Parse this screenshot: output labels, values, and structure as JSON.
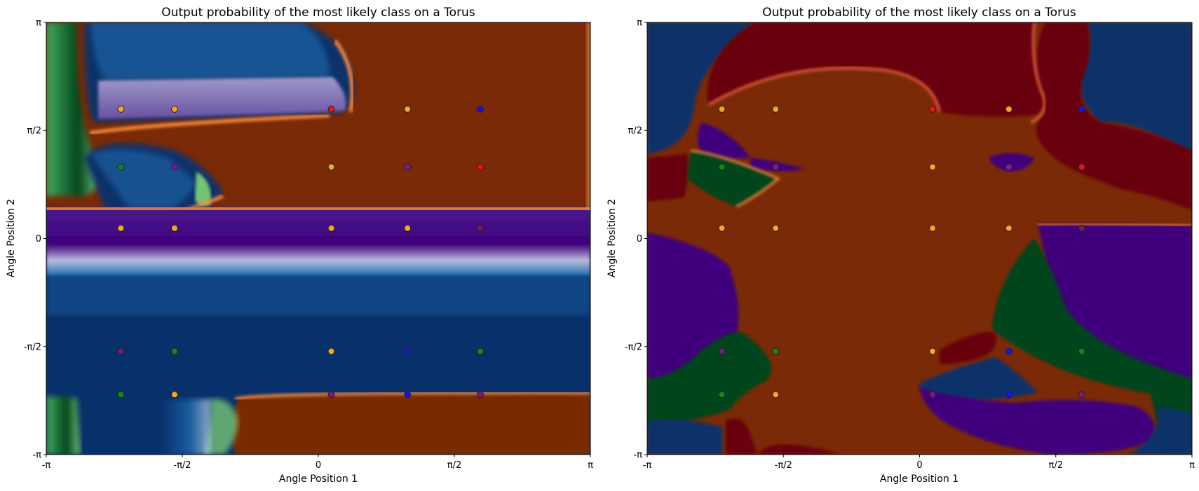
{
  "chart_data": [
    {
      "type": "heatmap",
      "title": "Output probability of the most likely class on a Torus",
      "xlabel": "Angle Position 1",
      "ylabel": "Angle Position 2",
      "xlim": [
        -3.14159,
        3.14159
      ],
      "ylim": [
        -3.14159,
        3.14159
      ],
      "xticks": [
        {
          "value": -3.14159,
          "label": "-π"
        },
        {
          "value": -1.5708,
          "label": "-π/2"
        },
        {
          "value": 0,
          "label": "0"
        },
        {
          "value": 1.5708,
          "label": "π/2"
        },
        {
          "value": 3.14159,
          "label": "π"
        }
      ],
      "yticks": [
        {
          "value": -3.14159,
          "label": "-π"
        },
        {
          "value": -1.5708,
          "label": "-π/2"
        },
        {
          "value": 0,
          "label": "0"
        },
        {
          "value": 1.5708,
          "label": "π/2"
        },
        {
          "value": 3.14159,
          "label": "π"
        }
      ],
      "class_colors": {
        "orange": "#7a2a06",
        "purple": "#3f007d",
        "blue": "#08306b",
        "green": "#00441b",
        "red": "#67000d"
      },
      "points": [
        {
          "x": -2.28,
          "y": 1.88,
          "color": "#f5a623"
        },
        {
          "x": -1.66,
          "y": 1.88,
          "color": "#f5a623"
        },
        {
          "x": 0.15,
          "y": 1.88,
          "color": "#e8141c"
        },
        {
          "x": 1.03,
          "y": 1.88,
          "color": "#f5a623"
        },
        {
          "x": 1.87,
          "y": 1.88,
          "color": "#1414f0"
        },
        {
          "x": -2.28,
          "y": 1.04,
          "color": "#128a12"
        },
        {
          "x": -1.66,
          "y": 1.04,
          "color": "#7a1a9a"
        },
        {
          "x": 0.15,
          "y": 1.04,
          "color": "#f5a623"
        },
        {
          "x": 1.03,
          "y": 1.04,
          "color": "#7a1a9a"
        },
        {
          "x": 1.87,
          "y": 1.04,
          "color": "#e8141c"
        },
        {
          "x": -2.28,
          "y": 0.15,
          "color": "#f5a623"
        },
        {
          "x": -1.66,
          "y": 0.15,
          "color": "#f5a623"
        },
        {
          "x": 0.15,
          "y": 0.15,
          "color": "#f5a623"
        },
        {
          "x": 1.03,
          "y": 0.15,
          "color": "#f5a623"
        },
        {
          "x": 1.87,
          "y": 0.15,
          "color": "#7a1a4a"
        },
        {
          "x": -2.28,
          "y": -1.64,
          "color": "#7a1a7a"
        },
        {
          "x": -1.66,
          "y": -1.64,
          "color": "#128a12"
        },
        {
          "x": 0.15,
          "y": -1.64,
          "color": "#f5a623"
        },
        {
          "x": 1.03,
          "y": -1.64,
          "color": "#1414f0"
        },
        {
          "x": 1.87,
          "y": -1.64,
          "color": "#128a12"
        },
        {
          "x": -2.28,
          "y": -2.27,
          "color": "#128a12"
        },
        {
          "x": -1.66,
          "y": -2.27,
          "color": "#f5a623"
        },
        {
          "x": 0.15,
          "y": -2.27,
          "color": "#7a1a7a"
        },
        {
          "x": 1.03,
          "y": -2.27,
          "color": "#1414f0"
        },
        {
          "x": 1.87,
          "y": -2.27,
          "color": "#7a1a7a"
        }
      ]
    },
    {
      "type": "heatmap",
      "title": "Output probability of the most likely class on a Torus",
      "xlabel": "Angle Position 1",
      "ylabel": "Angle Position 2",
      "xlim": [
        -3.14159,
        3.14159
      ],
      "ylim": [
        -3.14159,
        3.14159
      ],
      "xticks": [
        {
          "value": -3.14159,
          "label": "-π"
        },
        {
          "value": -1.5708,
          "label": "-π/2"
        },
        {
          "value": 0,
          "label": "0"
        },
        {
          "value": 1.5708,
          "label": "π/2"
        },
        {
          "value": 3.14159,
          "label": "π"
        }
      ],
      "yticks": [
        {
          "value": -3.14159,
          "label": "-π"
        },
        {
          "value": -1.5708,
          "label": "-π/2"
        },
        {
          "value": 0,
          "label": "0"
        },
        {
          "value": 1.5708,
          "label": "π/2"
        },
        {
          "value": 3.14159,
          "label": "π"
        }
      ],
      "class_colors": {
        "orange": "#7a2a06",
        "purple": "#3f007d",
        "blue": "#08306b",
        "green": "#00441b",
        "red": "#67000d"
      },
      "points": [
        {
          "x": -2.28,
          "y": 1.88,
          "color": "#f5a623"
        },
        {
          "x": -1.66,
          "y": 1.88,
          "color": "#f5a623"
        },
        {
          "x": 0.15,
          "y": 1.88,
          "color": "#e8141c"
        },
        {
          "x": 1.03,
          "y": 1.88,
          "color": "#f5a623"
        },
        {
          "x": 1.87,
          "y": 1.88,
          "color": "#1414f0"
        },
        {
          "x": -2.28,
          "y": 1.04,
          "color": "#128a12"
        },
        {
          "x": -1.66,
          "y": 1.04,
          "color": "#7a1a9a"
        },
        {
          "x": 0.15,
          "y": 1.04,
          "color": "#f5a623"
        },
        {
          "x": 1.03,
          "y": 1.04,
          "color": "#7a1a9a"
        },
        {
          "x": 1.87,
          "y": 1.04,
          "color": "#e8141c"
        },
        {
          "x": -2.28,
          "y": 0.15,
          "color": "#f5a623"
        },
        {
          "x": -1.66,
          "y": 0.15,
          "color": "#f5a623"
        },
        {
          "x": 0.15,
          "y": 0.15,
          "color": "#f5a623"
        },
        {
          "x": 1.03,
          "y": 0.15,
          "color": "#f5a623"
        },
        {
          "x": 1.87,
          "y": 0.15,
          "color": "#7a1a4a"
        },
        {
          "x": -2.28,
          "y": -1.64,
          "color": "#7a1a7a"
        },
        {
          "x": -1.66,
          "y": -1.64,
          "color": "#128a12"
        },
        {
          "x": 0.15,
          "y": -1.64,
          "color": "#f5a623"
        },
        {
          "x": 1.03,
          "y": -1.64,
          "color": "#1414f0"
        },
        {
          "x": 1.87,
          "y": -1.64,
          "color": "#128a12"
        },
        {
          "x": -2.28,
          "y": -2.27,
          "color": "#128a12"
        },
        {
          "x": -1.66,
          "y": -2.27,
          "color": "#f5a623"
        },
        {
          "x": 0.15,
          "y": -2.27,
          "color": "#7a1a7a"
        },
        {
          "x": 1.03,
          "y": -2.27,
          "color": "#1414f0"
        },
        {
          "x": 1.87,
          "y": -2.27,
          "color": "#7a1a7a"
        }
      ]
    }
  ]
}
